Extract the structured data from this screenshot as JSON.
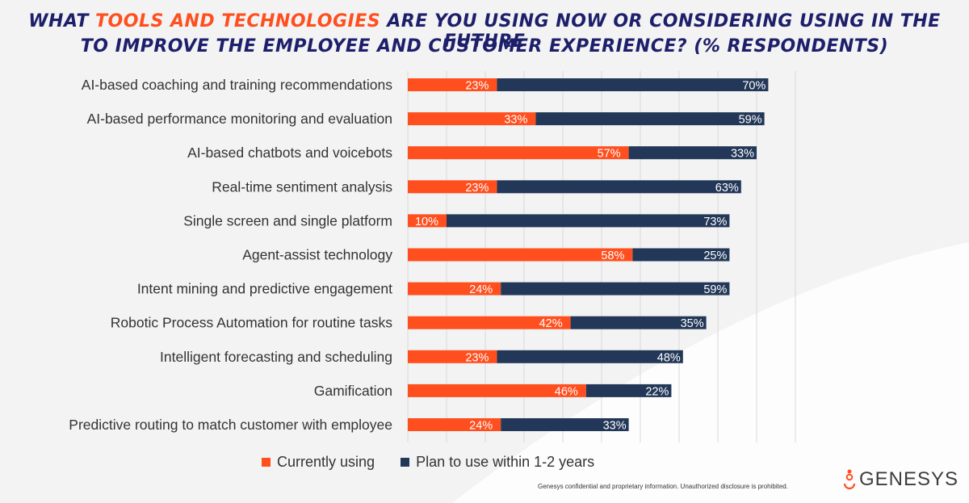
{
  "title": {
    "line1_pre": "What ",
    "line1_highlight": "tools and technologies",
    "line1_post": " are you using now or considering using in the future",
    "line2": "to improve the employee and customer experience? (% respondents)"
  },
  "colors": {
    "current": "#ff4f1f",
    "plan": "#233858",
    "title": "#1d1f6b",
    "grid": "#d9d9d9"
  },
  "legend": {
    "current": "Currently using",
    "plan": "Plan to use within 1-2 years"
  },
  "footer": "Genesys confidential and proprietary information. Unauthorized disclosure is prohibited.",
  "logo": {
    "text": "GENESYS",
    "icon": "genesys-logo-icon"
  },
  "chart_data": {
    "type": "bar",
    "orientation": "horizontal",
    "stacked": true,
    "categories": [
      "AI-based coaching and training recommendations",
      "AI-based performance monitoring and evaluation",
      "AI-based chatbots and voicebots",
      "Real-time sentiment analysis",
      "Single screen and single platform",
      "Agent-assist technology",
      "Intent mining and predictive engagement",
      "Robotic Process Automation for routine tasks",
      "Intelligent forecasting and scheduling",
      "Gamification",
      "Predictive routing to match customer with employee"
    ],
    "series": [
      {
        "name": "Currently using",
        "values": [
          23,
          33,
          57,
          23,
          10,
          58,
          24,
          42,
          23,
          46,
          24
        ]
      },
      {
        "name": "Plan to use within 1-2 years",
        "values": [
          70,
          59,
          33,
          63,
          73,
          25,
          59,
          35,
          48,
          22,
          33
        ]
      }
    ],
    "value_suffix": "%",
    "xlim": [
      0,
      100
    ],
    "grid": true,
    "legend_position": "bottom"
  }
}
